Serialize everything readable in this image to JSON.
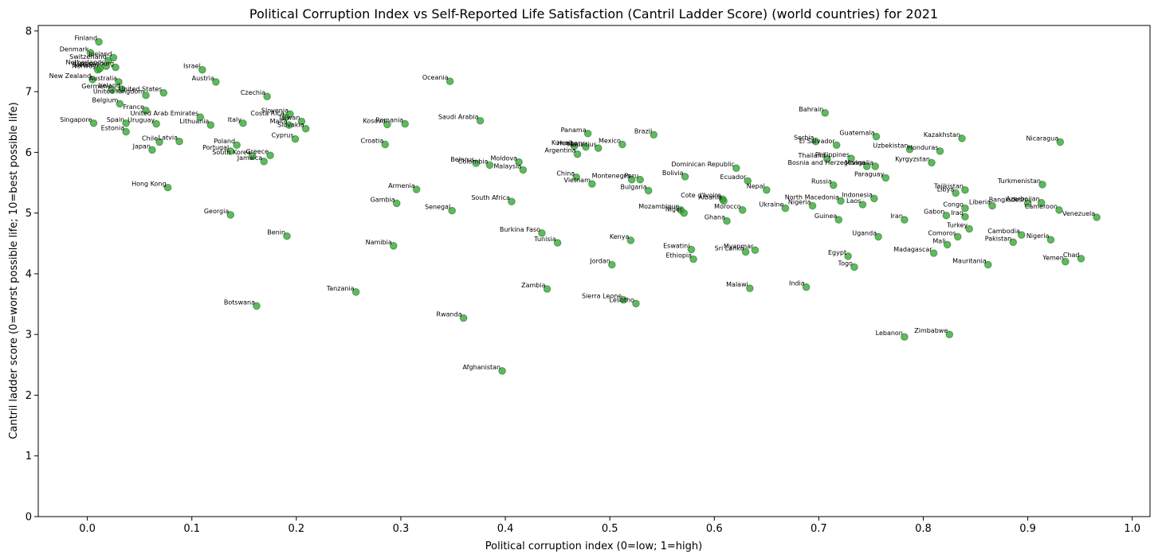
{
  "chart_data": {
    "type": "scatter",
    "title": "Political Corruption Index vs Self-Reported Life Satisfaction (Cantril Ladder Score) (world countries) for 2021",
    "xlabel": "Political corruption index (0=low; 1=high)",
    "ylabel": "Cantril ladder score (0=worst possible life; 10=best possible life)",
    "xlim": [
      -0.047,
      1.017
    ],
    "ylim": [
      0,
      8.09
    ],
    "xticks": [
      "0.0",
      "0.1",
      "0.2",
      "0.3",
      "0.4",
      "0.5",
      "0.6",
      "0.7",
      "0.8",
      "0.9",
      "1.0"
    ],
    "yticks": [
      "0",
      "1",
      "2",
      "3",
      "4",
      "5",
      "6",
      "7",
      "8"
    ],
    "color": "#2ca02c",
    "grid": false,
    "points": [
      {
        "label": "Finland",
        "x": 0.011,
        "y": 7.82
      },
      {
        "label": "Denmark",
        "x": 0.003,
        "y": 7.64
      },
      {
        "label": "Iceland",
        "x": 0.025,
        "y": 7.56
      },
      {
        "label": "Switzerland",
        "x": 0.02,
        "y": 7.51
      },
      {
        "label": "Netherlands",
        "x": 0.018,
        "y": 7.42
      },
      {
        "label": "Norway",
        "x": 0.01,
        "y": 7.36
      },
      {
        "label": "Sweden",
        "x": 0.012,
        "y": 7.38
      },
      {
        "label": "Luxembourg",
        "x": 0.027,
        "y": 7.4
      },
      {
        "label": "New Zealand",
        "x": 0.005,
        "y": 7.2
      },
      {
        "label": "Australia",
        "x": 0.03,
        "y": 7.16
      },
      {
        "label": "Germany",
        "x": 0.024,
        "y": 7.03
      },
      {
        "label": "Ireland",
        "x": 0.033,
        "y": 7.04
      },
      {
        "label": "United States",
        "x": 0.073,
        "y": 6.98
      },
      {
        "label": "United Kingdom",
        "x": 0.056,
        "y": 6.94
      },
      {
        "label": "Belgium",
        "x": 0.031,
        "y": 6.8
      },
      {
        "label": "France",
        "x": 0.056,
        "y": 6.69
      },
      {
        "label": "Singapore",
        "x": 0.006,
        "y": 6.48
      },
      {
        "label": "Spain",
        "x": 0.037,
        "y": 6.48
      },
      {
        "label": "Uruguay",
        "x": 0.066,
        "y": 6.47
      },
      {
        "label": "Estonia",
        "x": 0.037,
        "y": 6.34
      },
      {
        "label": "Chile",
        "x": 0.069,
        "y": 6.17
      },
      {
        "label": "Latvia",
        "x": 0.088,
        "y": 6.18
      },
      {
        "label": "Japan",
        "x": 0.062,
        "y": 6.04
      },
      {
        "label": "United Arab Emirates",
        "x": 0.108,
        "y": 6.58
      },
      {
        "label": "Lithuania",
        "x": 0.118,
        "y": 6.45
      },
      {
        "label": "Israel",
        "x": 0.11,
        "y": 7.36
      },
      {
        "label": "Austria",
        "x": 0.123,
        "y": 7.16
      },
      {
        "label": "Italy",
        "x": 0.149,
        "y": 6.48
      },
      {
        "label": "Poland",
        "x": 0.143,
        "y": 6.12
      },
      {
        "label": "Portugal",
        "x": 0.137,
        "y": 6.02
      },
      {
        "label": "South Korea",
        "x": 0.158,
        "y": 5.94
      },
      {
        "label": "Greece",
        "x": 0.175,
        "y": 5.95
      },
      {
        "label": "Jamaica",
        "x": 0.169,
        "y": 5.85
      },
      {
        "label": "Czechia",
        "x": 0.172,
        "y": 6.92
      },
      {
        "label": "Costa Rica",
        "x": 0.19,
        "y": 6.58
      },
      {
        "label": "Slovenia",
        "x": 0.194,
        "y": 6.63
      },
      {
        "label": "Taiwan",
        "x": 0.205,
        "y": 6.51
      },
      {
        "label": "Malta",
        "x": 0.193,
        "y": 6.45
      },
      {
        "label": "Slovakia",
        "x": 0.209,
        "y": 6.39
      },
      {
        "label": "Cyprus",
        "x": 0.199,
        "y": 6.22
      },
      {
        "label": "Georgia",
        "x": 0.137,
        "y": 4.97
      },
      {
        "label": "Hong Kong",
        "x": 0.077,
        "y": 5.42
      },
      {
        "label": "Botswana",
        "x": 0.162,
        "y": 3.47
      },
      {
        "label": "Benin",
        "x": 0.191,
        "y": 4.62
      },
      {
        "label": "Kosovo",
        "x": 0.287,
        "y": 6.46
      },
      {
        "label": "Romania",
        "x": 0.304,
        "y": 6.47
      },
      {
        "label": "Croatia",
        "x": 0.285,
        "y": 6.13
      },
      {
        "label": "Oceania",
        "x": 0.347,
        "y": 7.17
      },
      {
        "label": "Saudi Arabia",
        "x": 0.376,
        "y": 6.52
      },
      {
        "label": "Armenia",
        "x": 0.315,
        "y": 5.39
      },
      {
        "label": "Gambia",
        "x": 0.296,
        "y": 5.16
      },
      {
        "label": "Senegal",
        "x": 0.349,
        "y": 5.04
      },
      {
        "label": "Namibia",
        "x": 0.293,
        "y": 4.46
      },
      {
        "label": "Tanzania",
        "x": 0.257,
        "y": 3.7
      },
      {
        "label": "Rwanda",
        "x": 0.36,
        "y": 3.27
      },
      {
        "label": "Afghanistan",
        "x": 0.397,
        "y": 2.4
      },
      {
        "label": "Belarus",
        "x": 0.372,
        "y": 5.82
      },
      {
        "label": "Colombia",
        "x": 0.385,
        "y": 5.79
      },
      {
        "label": "Moldova",
        "x": 0.413,
        "y": 5.84
      },
      {
        "label": "Malaysia",
        "x": 0.417,
        "y": 5.71
      },
      {
        "label": "South Africa",
        "x": 0.406,
        "y": 5.19
      },
      {
        "label": "Burkina Faso",
        "x": 0.435,
        "y": 4.67
      },
      {
        "label": "Tunisia",
        "x": 0.45,
        "y": 4.51
      },
      {
        "label": "Zambia",
        "x": 0.44,
        "y": 3.75
      },
      {
        "label": "Panama",
        "x": 0.479,
        "y": 6.31
      },
      {
        "label": "Kuwait",
        "x": 0.466,
        "y": 6.1
      },
      {
        "label": "Hungary",
        "x": 0.477,
        "y": 6.09
      },
      {
        "label": "Mauritius",
        "x": 0.489,
        "y": 6.07
      },
      {
        "label": "Argentina",
        "x": 0.469,
        "y": 5.97
      },
      {
        "label": "Mexico",
        "x": 0.512,
        "y": 6.13
      },
      {
        "label": "Brazil",
        "x": 0.542,
        "y": 6.29
      },
      {
        "label": "China",
        "x": 0.468,
        "y": 5.59
      },
      {
        "label": "Vietnam",
        "x": 0.483,
        "y": 5.48
      },
      {
        "label": "Montenegro",
        "x": 0.521,
        "y": 5.55
      },
      {
        "label": "Peru",
        "x": 0.529,
        "y": 5.55
      },
      {
        "label": "Bulgaria",
        "x": 0.537,
        "y": 5.37
      },
      {
        "label": "Kenya",
        "x": 0.52,
        "y": 4.55
      },
      {
        "label": "Jordan",
        "x": 0.502,
        "y": 4.15
      },
      {
        "label": "Sierra Leone",
        "x": 0.513,
        "y": 3.57
      },
      {
        "label": "Lesotho",
        "x": 0.525,
        "y": 3.51
      },
      {
        "label": "Bolivia",
        "x": 0.572,
        "y": 5.6
      },
      {
        "label": "Dominican Republic",
        "x": 0.621,
        "y": 5.74
      },
      {
        "label": "Ecuador",
        "x": 0.632,
        "y": 5.53
      },
      {
        "label": "Nepal",
        "x": 0.65,
        "y": 5.38
      },
      {
        "label": "Cote d'Ivoire",
        "x": 0.608,
        "y": 5.23
      },
      {
        "label": "Albania",
        "x": 0.609,
        "y": 5.2
      },
      {
        "label": "Mozambique",
        "x": 0.568,
        "y": 5.05
      },
      {
        "label": "Niger",
        "x": 0.571,
        "y": 5.0
      },
      {
        "label": "Morocco",
        "x": 0.627,
        "y": 5.05
      },
      {
        "label": "Ghana",
        "x": 0.612,
        "y": 4.87
      },
      {
        "label": "Eswatini",
        "x": 0.578,
        "y": 4.4
      },
      {
        "label": "Ethiopia",
        "x": 0.58,
        "y": 4.24
      },
      {
        "label": "Myanmar",
        "x": 0.639,
        "y": 4.39
      },
      {
        "label": "Sri Lanka",
        "x": 0.63,
        "y": 4.36
      },
      {
        "label": "Malawi",
        "x": 0.634,
        "y": 3.76
      },
      {
        "label": "Bahrain",
        "x": 0.706,
        "y": 6.65
      },
      {
        "label": "Serbia",
        "x": 0.697,
        "y": 6.18
      },
      {
        "label": "El Salvador",
        "x": 0.717,
        "y": 6.12
      },
      {
        "label": "Guatemala",
        "x": 0.755,
        "y": 6.26
      },
      {
        "label": "Philippines",
        "x": 0.731,
        "y": 5.9
      },
      {
        "label": "Thailand",
        "x": 0.708,
        "y": 5.89
      },
      {
        "label": "Bosnia and Herzegovina",
        "x": 0.746,
        "y": 5.77
      },
      {
        "label": "Mongolia",
        "x": 0.754,
        "y": 5.77
      },
      {
        "label": "Paraguay",
        "x": 0.764,
        "y": 5.58
      },
      {
        "label": "Russia",
        "x": 0.714,
        "y": 5.46
      },
      {
        "label": "North Macedonia",
        "x": 0.721,
        "y": 5.2
      },
      {
        "label": "Nigeria",
        "x": 0.694,
        "y": 5.12
      },
      {
        "label": "Ukraine",
        "x": 0.668,
        "y": 5.08
      },
      {
        "label": "Indonesia",
        "x": 0.753,
        "y": 5.24
      },
      {
        "label": "Laos",
        "x": 0.742,
        "y": 5.14
      },
      {
        "label": "Guinea",
        "x": 0.719,
        "y": 4.89
      },
      {
        "label": "Uganda",
        "x": 0.757,
        "y": 4.61
      },
      {
        "label": "Egypt",
        "x": 0.728,
        "y": 4.29
      },
      {
        "label": "Togo",
        "x": 0.734,
        "y": 4.11
      },
      {
        "label": "India",
        "x": 0.688,
        "y": 3.78
      },
      {
        "label": "Kazakhstan",
        "x": 0.837,
        "y": 6.23
      },
      {
        "label": "Uzbekistan",
        "x": 0.787,
        "y": 6.05
      },
      {
        "label": "Honduras",
        "x": 0.816,
        "y": 6.02
      },
      {
        "label": "Kyrgyzstan",
        "x": 0.808,
        "y": 5.83
      },
      {
        "label": "Nicaragua",
        "x": 0.931,
        "y": 6.17
      },
      {
        "label": "Turkmenistan",
        "x": 0.914,
        "y": 5.47
      },
      {
        "label": "Tajikistan",
        "x": 0.84,
        "y": 5.38
      },
      {
        "label": "Libya",
        "x": 0.831,
        "y": 5.33
      },
      {
        "label": "Liberia",
        "x": 0.866,
        "y": 5.12
      },
      {
        "label": "Bangladesh",
        "x": 0.9,
        "y": 5.16
      },
      {
        "label": "Azerbaijan",
        "x": 0.913,
        "y": 5.17
      },
      {
        "label": "Congo",
        "x": 0.84,
        "y": 5.08
      },
      {
        "label": "Gabon",
        "x": 0.822,
        "y": 4.96
      },
      {
        "label": "Iraq",
        "x": 0.84,
        "y": 4.94
      },
      {
        "label": "Cameroon",
        "x": 0.93,
        "y": 5.05
      },
      {
        "label": "Venezuela",
        "x": 0.966,
        "y": 4.93
      },
      {
        "label": "Iran",
        "x": 0.782,
        "y": 4.89
      },
      {
        "label": "Turkey",
        "x": 0.844,
        "y": 4.74
      },
      {
        "label": "Comoros",
        "x": 0.833,
        "y": 4.61
      },
      {
        "label": "Cambodia",
        "x": 0.894,
        "y": 4.64
      },
      {
        "label": "Nigeria",
        "x": 0.922,
        "y": 4.56
      },
      {
        "label": "Mali",
        "x": 0.823,
        "y": 4.48
      },
      {
        "label": "Pakistan",
        "x": 0.886,
        "y": 4.52
      },
      {
        "label": "Madagascar",
        "x": 0.81,
        "y": 4.34
      },
      {
        "label": "Mauritania",
        "x": 0.862,
        "y": 4.15
      },
      {
        "label": "Yemen",
        "x": 0.936,
        "y": 4.2
      },
      {
        "label": "Chad",
        "x": 0.951,
        "y": 4.25
      },
      {
        "label": "Zimbabwe",
        "x": 0.825,
        "y": 3.0
      },
      {
        "label": "Lebanon",
        "x": 0.782,
        "y": 2.96
      }
    ]
  }
}
